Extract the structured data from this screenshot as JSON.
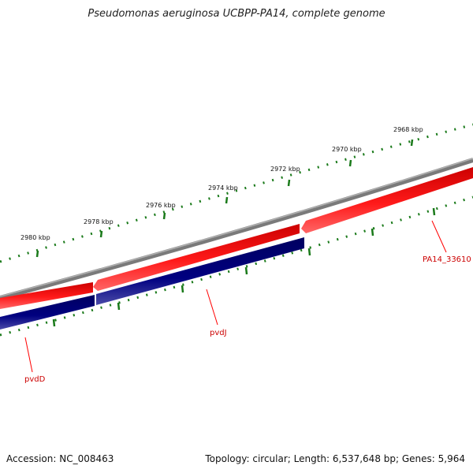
{
  "title": "Pseudomonas aeruginosa UCBPP-PA14, complete genome",
  "accession_label": "Accession: NC_008463",
  "summary_label": "Topology: circular; Length: 6,537,648 bp; Genes: 5,964",
  "scale": {
    "unit": "kbp",
    "ticks": [
      {
        "label": "2968 kbp"
      },
      {
        "label": "2970 kbp"
      },
      {
        "label": "2972 kbp"
      },
      {
        "label": "2974 kbp"
      },
      {
        "label": "2976 kbp"
      },
      {
        "label": "2978 kbp"
      },
      {
        "label": "2980 kbp"
      }
    ]
  },
  "genes": [
    {
      "name": "PA14_33610",
      "strand": "forward",
      "color": "#ff0000"
    },
    {
      "name": "pvdJ",
      "strand": "forward",
      "color": "#ff0000"
    },
    {
      "name": "pvdD",
      "strand": "forward",
      "color": "#ff0000"
    }
  ],
  "feature_labels": [
    {
      "text": "PA14_33610",
      "color": "#cc0000"
    },
    {
      "text": "pvdJ",
      "color": "#cc0000"
    },
    {
      "text": "pvdD",
      "color": "#cc0000"
    }
  ],
  "colors": {
    "backbone": "#808080",
    "forward_genes": "#ff0000",
    "reverse_genes": "#000080",
    "tick_marks": "#1a7a1a",
    "label_lines": "#ff0000"
  }
}
